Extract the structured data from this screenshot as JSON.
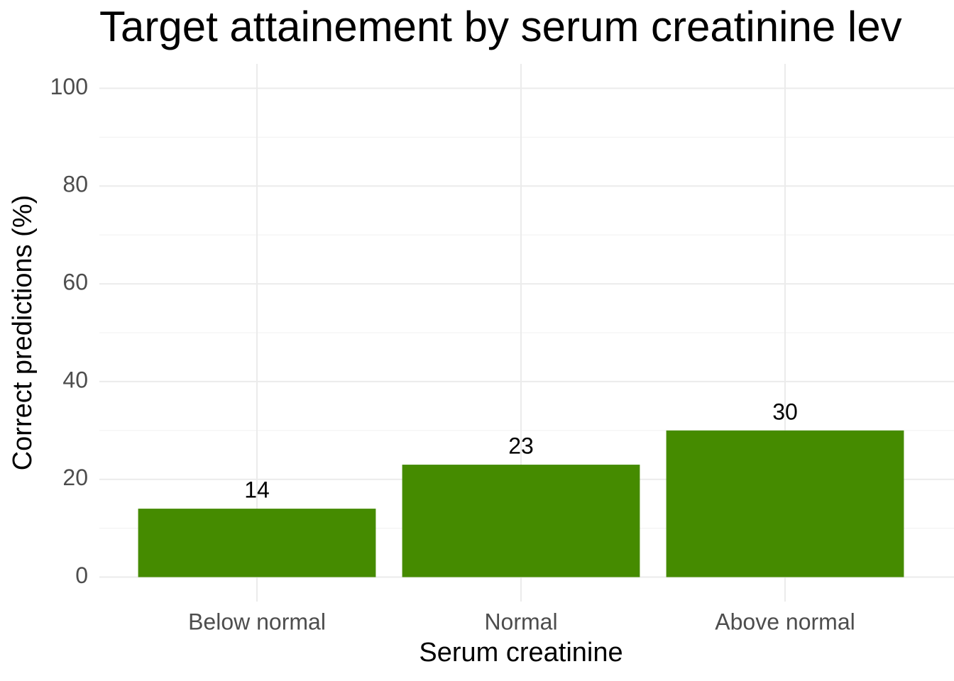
{
  "chart_data": {
    "type": "bar",
    "title": "Target attainement by serum creatinine lev",
    "x_label": "Serum creatinine",
    "y_label": "Correct predictions (%)",
    "categories": [
      "Below normal",
      "Normal",
      "Above normal"
    ],
    "values": [
      14,
      23,
      30
    ],
    "color": "#458b00",
    "ylim": [
      -5,
      105
    ],
    "yticks": [
      0,
      20,
      40,
      60,
      80,
      100
    ],
    "grid": true
  }
}
